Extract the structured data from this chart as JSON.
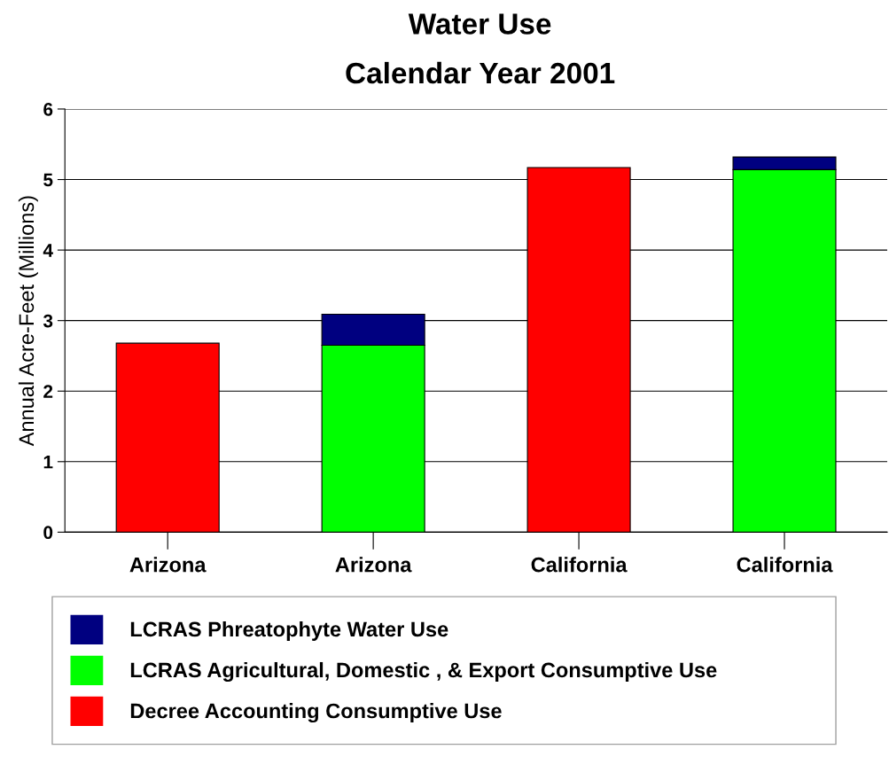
{
  "chart_data": {
    "type": "bar",
    "title": "Water Use",
    "subtitle": "Calendar Year 2001",
    "ylabel": "Annual Acre-Feet (Millions)",
    "categories": [
      "Arizona",
      "Arizona",
      "California",
      "California"
    ],
    "stacked": true,
    "series": [
      {
        "name": "Decree Accounting Consumptive Use",
        "color": "#ff0000",
        "values": [
          2.68,
          null,
          5.17,
          null
        ]
      },
      {
        "name": "LCRAS Agricultural, Domestic , & Export Consumptive Use",
        "color": "#00ff00",
        "values": [
          null,
          2.65,
          null,
          5.14
        ]
      },
      {
        "name": "LCRAS Phreatophyte Water Use",
        "color": "#000080",
        "values": [
          null,
          0.44,
          null,
          0.18
        ]
      }
    ],
    "ylim": [
      0,
      6
    ],
    "yticks": [
      0,
      1,
      2,
      3,
      4,
      5,
      6
    ],
    "grid": "y",
    "legend": "bottom"
  }
}
